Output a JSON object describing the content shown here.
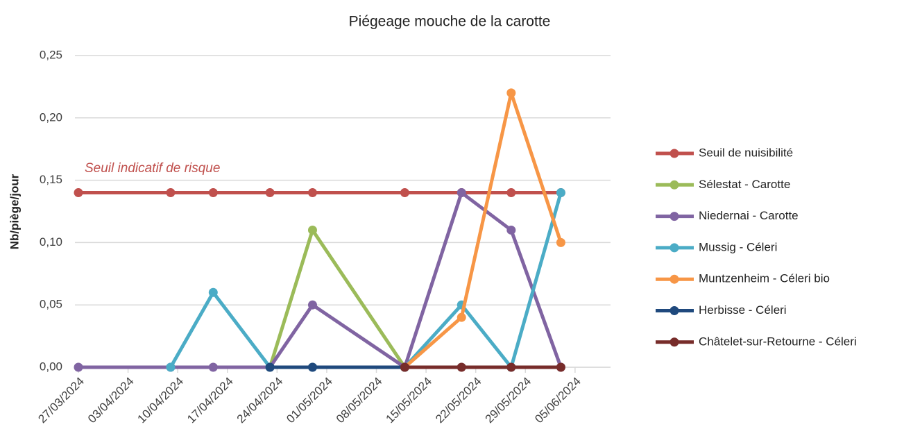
{
  "chart_data": {
    "type": "line",
    "title": "Piégeage mouche de la carotte",
    "y_label": "Nb/piège/jour",
    "annotation": "Seuil indicatif de risque",
    "x": [
      "2024-03-27",
      "2024-04-09",
      "2024-04-15",
      "2024-04-23",
      "2024-04-29",
      "2024-05-12",
      "2024-05-20",
      "2024-05-27",
      "2024-06-03"
    ],
    "series": [
      {
        "name": "Seuil de nuisibilité",
        "color": "#c0504d",
        "values": [
          0.14,
          0.14,
          0.14,
          0.14,
          0.14,
          0.14,
          0.14,
          0.14,
          0.14
        ]
      },
      {
        "name": "Sélestat - Carotte",
        "color": "#9bbb59",
        "values": [
          null,
          null,
          null,
          0,
          0.11,
          0,
          null,
          null,
          null
        ]
      },
      {
        "name": "Niedernai - Carotte",
        "color": "#8064a2",
        "values": [
          0,
          0,
          0,
          0,
          0.05,
          0,
          0.14,
          0.11,
          0
        ]
      },
      {
        "name": "Mussig - Céleri",
        "color": "#4bacc6",
        "values": [
          null,
          0,
          0.06,
          0,
          0,
          0,
          0.05,
          0,
          0.14
        ]
      },
      {
        "name": "Muntzenheim - Céleri bio",
        "color": "#f79646",
        "values": [
          null,
          null,
          null,
          null,
          null,
          0,
          0.04,
          0.22,
          0.1
        ]
      },
      {
        "name": "Herbisse - Céleri",
        "color": "#1f497d",
        "values": [
          null,
          null,
          null,
          0,
          0,
          0,
          null,
          null,
          null
        ]
      },
      {
        "name": "Châtelet-sur-Retourne - Céleri",
        "color": "#772c2a",
        "values": [
          null,
          null,
          null,
          null,
          null,
          0,
          0,
          0,
          0
        ]
      }
    ],
    "xlim": [
      "2024-03-27",
      "2024-06-10"
    ],
    "xticks": [
      {
        "value": "2024-03-27",
        "label": "27/03/2024"
      },
      {
        "value": "2024-04-03",
        "label": "03/04/2024"
      },
      {
        "value": "2024-04-10",
        "label": "10/04/2024"
      },
      {
        "value": "2024-04-17",
        "label": "17/04/2024"
      },
      {
        "value": "2024-04-24",
        "label": "24/04/2024"
      },
      {
        "value": "2024-05-01",
        "label": "01/05/2024"
      },
      {
        "value": "2024-05-08",
        "label": "08/05/2024"
      },
      {
        "value": "2024-05-15",
        "label": "15/05/2024"
      },
      {
        "value": "2024-05-22",
        "label": "22/05/2024"
      },
      {
        "value": "2024-05-29",
        "label": "29/05/2024"
      },
      {
        "value": "2024-06-05",
        "label": "05/06/2024"
      }
    ],
    "ylim": [
      0,
      0.25
    ],
    "yticks": [
      {
        "value": 0,
        "label": "0,00"
      },
      {
        "value": 0.05,
        "label": "0,05"
      },
      {
        "value": 0.1,
        "label": "0,10"
      },
      {
        "value": 0.15,
        "label": "0,15"
      },
      {
        "value": 0.2,
        "label": "0,20"
      },
      {
        "value": 0.25,
        "label": "0,25"
      }
    ],
    "grid": true,
    "legend": "right"
  }
}
